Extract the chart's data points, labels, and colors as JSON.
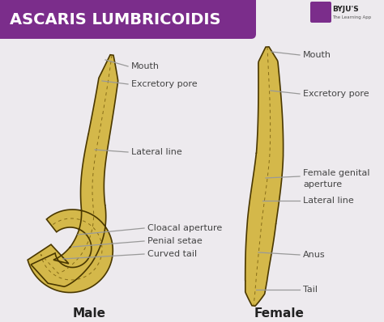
{
  "title": "ASCARIS LUMBRICOIDIS",
  "title_bg": "#7B2D8B",
  "title_color": "#FFFFFF",
  "bg_color": "#EDEAEE",
  "worm_fill": "#D4B84A",
  "worm_edge": "#4A3800",
  "worm_dashes": "#7A6010",
  "label_color": "#444444",
  "line_color": "#999999",
  "male_label": "Male",
  "female_label": "Female"
}
